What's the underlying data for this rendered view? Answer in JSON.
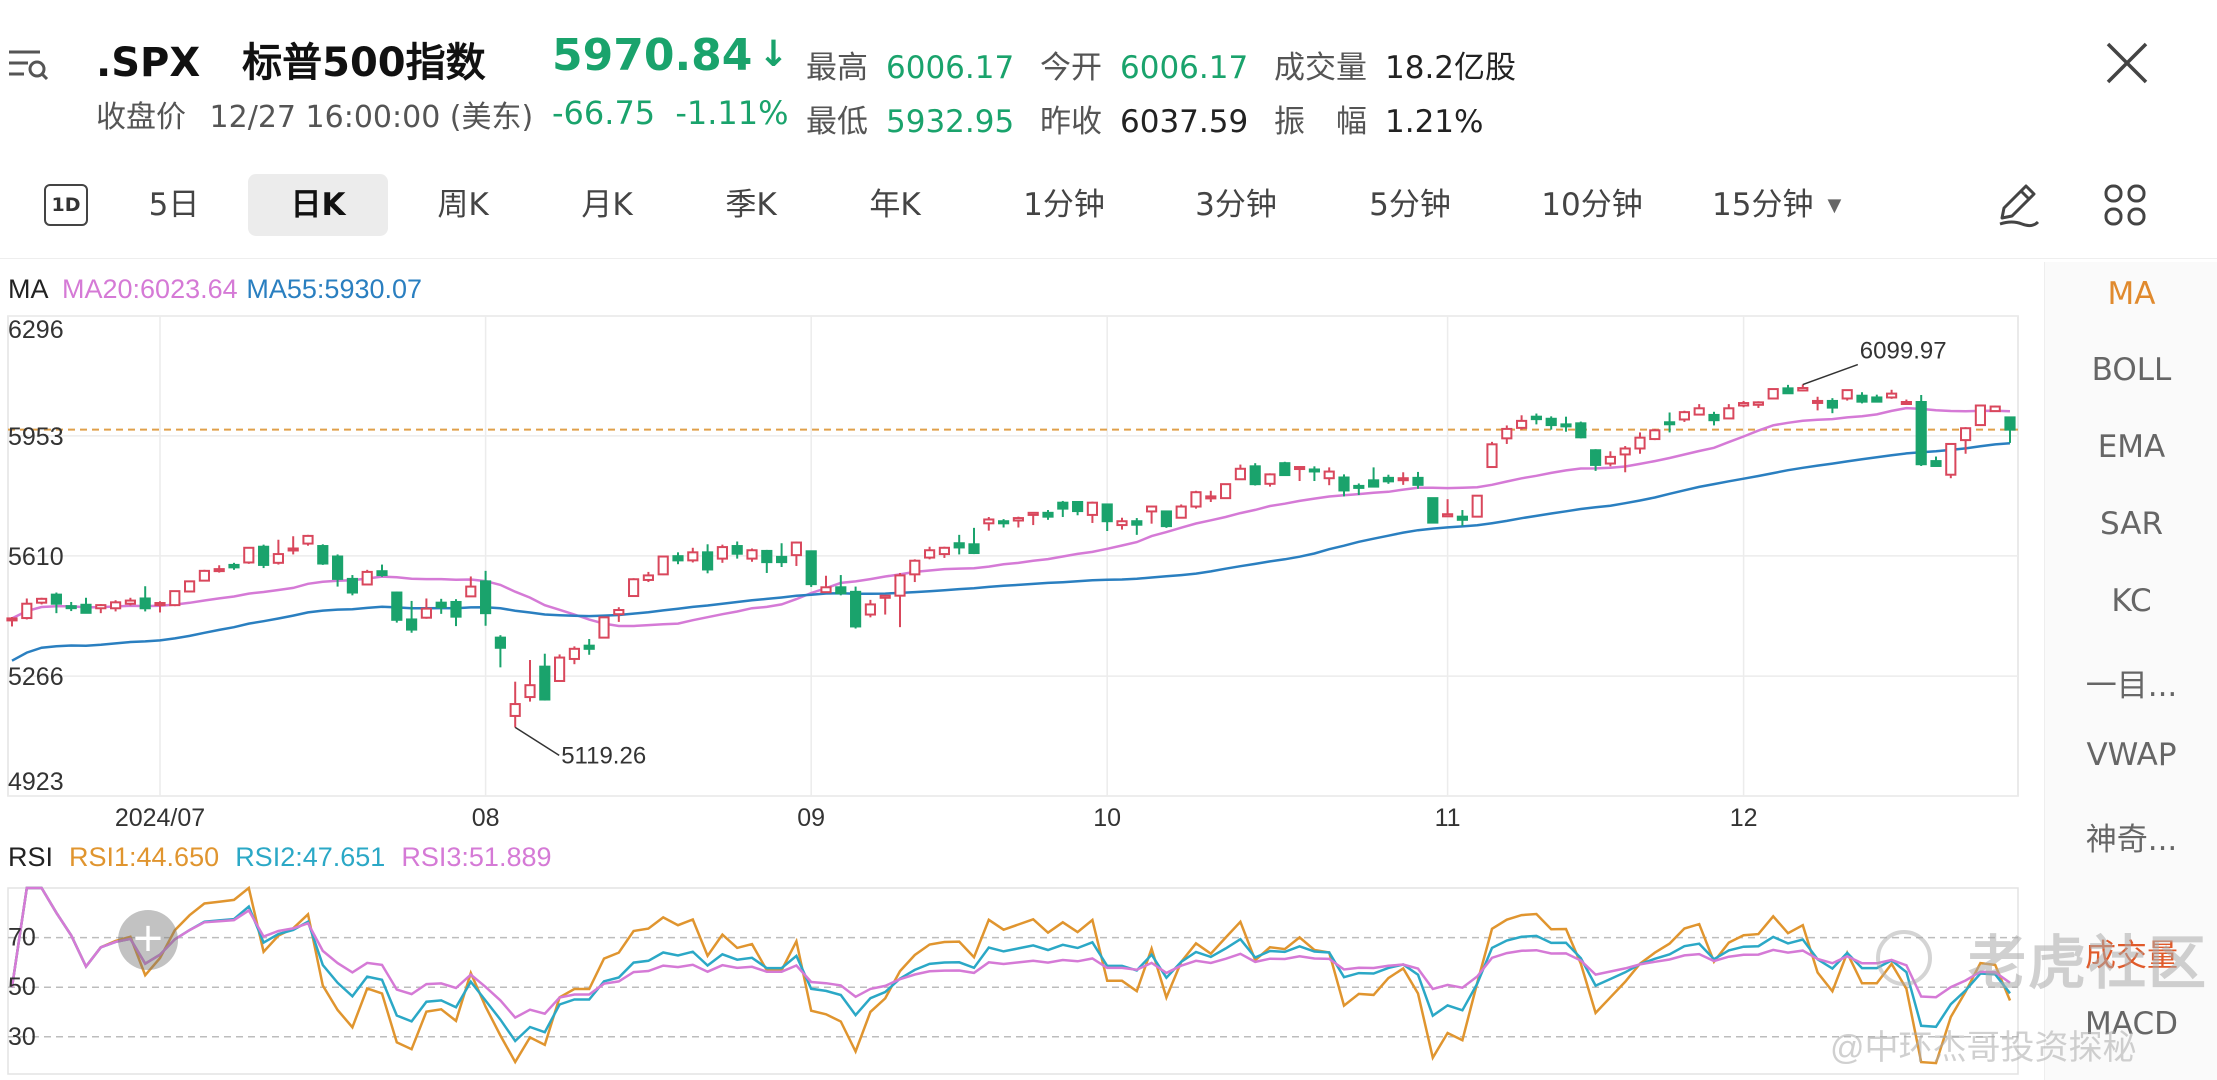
{
  "header": {
    "symbol": ".SPX",
    "name": "标普500指数",
    "close_label": "收盘价",
    "close_time": "12/27 16:00:00 (美东)",
    "price": "5970.84",
    "change": "-66.75",
    "change_pct": "-1.11%",
    "high_label": "最高",
    "high": "6006.17",
    "low_label": "最低",
    "low": "5932.95",
    "open_label": "今开",
    "open": "6006.17",
    "prev_close_label": "昨收",
    "prev_close": "6037.59",
    "volume_label": "成交量",
    "volume": "18.2亿股",
    "amplitude_label": "振　幅",
    "amplitude": "1.21%",
    "colors": {
      "down": "#1aa36c",
      "up": "#d9475c"
    }
  },
  "tabs": {
    "items": [
      "5日",
      "日K",
      "周K",
      "月K",
      "季K",
      "年K",
      "1分钟",
      "3分钟",
      "5分钟",
      "10分钟",
      "15分钟"
    ],
    "active": "日K",
    "badge": "1D"
  },
  "indicators": {
    "items": [
      "MA",
      "BOLL",
      "EMA",
      "SAR",
      "KC",
      "一目...",
      "VWAP",
      "神奇...",
      "成交量",
      "MACD"
    ],
    "active": "MA"
  },
  "watermark": {
    "logo": "老虎社区",
    "author": "@中环杰哥投资探秘"
  },
  "chart_data": [
    {
      "type": "candlestick",
      "title": "",
      "legend": [
        {
          "name": "MA",
          "value": "",
          "color": "#222222"
        },
        {
          "name": "MA20",
          "value": "6023.64",
          "color": "#d57ad6"
        },
        {
          "name": "MA55",
          "value": "5930.07",
          "color": "#2a7fc0"
        }
      ],
      "y_ticks": [
        6296,
        5953,
        5610,
        5266,
        4923
      ],
      "ylim": [
        4923,
        6296
      ],
      "x_labels": [
        {
          "label": "2024/07",
          "date": "2024-07-01"
        },
        {
          "label": "08",
          "date": "2024-08-01"
        },
        {
          "label": "09",
          "date": "2024-09-03"
        },
        {
          "label": "10",
          "date": "2024-10-01"
        },
        {
          "label": "11",
          "date": "2024-11-01"
        },
        {
          "label": "12",
          "date": "2024-12-02"
        }
      ],
      "annotations": [
        {
          "text": "6099.97",
          "date": "2024-12-06",
          "value": 6099.97
        },
        {
          "text": "5119.26",
          "date": "2024-08-05",
          "value": 5119.26
        }
      ],
      "reference_line": {
        "value": 5970.84
      },
      "dates": [
        "2024-06-14",
        "2024-06-17",
        "2024-06-18",
        "2024-06-20",
        "2024-06-21",
        "2024-06-24",
        "2024-06-25",
        "2024-06-26",
        "2024-06-27",
        "2024-06-28",
        "2024-07-01",
        "2024-07-02",
        "2024-07-03",
        "2024-07-05",
        "2024-07-08",
        "2024-07-09",
        "2024-07-10",
        "2024-07-11",
        "2024-07-12",
        "2024-07-15",
        "2024-07-16",
        "2024-07-17",
        "2024-07-18",
        "2024-07-19",
        "2024-07-22",
        "2024-07-23",
        "2024-07-24",
        "2024-07-25",
        "2024-07-26",
        "2024-07-29",
        "2024-07-30",
        "2024-07-31",
        "2024-08-01",
        "2024-08-02",
        "2024-08-05",
        "2024-08-06",
        "2024-08-07",
        "2024-08-08",
        "2024-08-09",
        "2024-08-12",
        "2024-08-13",
        "2024-08-14",
        "2024-08-15",
        "2024-08-16",
        "2024-08-19",
        "2024-08-20",
        "2024-08-21",
        "2024-08-22",
        "2024-08-23",
        "2024-08-26",
        "2024-08-27",
        "2024-08-28",
        "2024-08-29",
        "2024-08-30",
        "2024-09-03",
        "2024-09-04",
        "2024-09-05",
        "2024-09-06",
        "2024-09-09",
        "2024-09-10",
        "2024-09-11",
        "2024-09-12",
        "2024-09-13",
        "2024-09-16",
        "2024-09-17",
        "2024-09-18",
        "2024-09-19",
        "2024-09-20",
        "2024-09-23",
        "2024-09-24",
        "2024-09-25",
        "2024-09-26",
        "2024-09-27",
        "2024-09-30",
        "2024-10-01",
        "2024-10-02",
        "2024-10-03",
        "2024-10-04",
        "2024-10-07",
        "2024-10-08",
        "2024-10-09",
        "2024-10-10",
        "2024-10-11",
        "2024-10-14",
        "2024-10-15",
        "2024-10-16",
        "2024-10-17",
        "2024-10-18",
        "2024-10-21",
        "2024-10-22",
        "2024-10-23",
        "2024-10-24",
        "2024-10-25",
        "2024-10-28",
        "2024-10-29",
        "2024-10-30",
        "2024-10-31",
        "2024-11-01",
        "2024-11-04",
        "2024-11-05",
        "2024-11-06",
        "2024-11-07",
        "2024-11-08",
        "2024-11-11",
        "2024-11-12",
        "2024-11-13",
        "2024-11-14",
        "2024-11-15",
        "2024-11-18",
        "2024-11-19",
        "2024-11-20",
        "2024-11-21",
        "2024-11-22",
        "2024-11-25",
        "2024-11-26",
        "2024-11-27",
        "2024-11-29",
        "2024-12-02",
        "2024-12-03",
        "2024-12-04",
        "2024-12-05",
        "2024-12-06",
        "2024-12-09",
        "2024-12-10",
        "2024-12-11",
        "2024-12-12",
        "2024-12-13",
        "2024-12-16",
        "2024-12-17",
        "2024-12-18",
        "2024-12-19",
        "2024-12-20",
        "2024-12-23",
        "2024-12-24",
        "2024-12-26",
        "2024-12-27"
      ],
      "ohlc": [
        [
          5429,
          5435,
          5408,
          5431
        ],
        [
          5432,
          5488,
          5428,
          5473
        ],
        [
          5476,
          5490,
          5471,
          5487
        ],
        [
          5499,
          5505,
          5446,
          5473
        ],
        [
          5466,
          5478,
          5452,
          5464
        ],
        [
          5470,
          5490,
          5447,
          5447
        ],
        [
          5460,
          5472,
          5446,
          5469
        ],
        [
          5460,
          5483,
          5451,
          5477
        ],
        [
          5473,
          5490,
          5468,
          5482
        ],
        [
          5488,
          5523,
          5451,
          5460
        ],
        [
          5472,
          5480,
          5448,
          5475
        ],
        [
          5469,
          5510,
          5466,
          5509
        ],
        [
          5508,
          5539,
          5508,
          5537
        ],
        [
          5539,
          5570,
          5537,
          5567
        ],
        [
          5572,
          5583,
          5562,
          5572
        ],
        [
          5584,
          5590,
          5570,
          5577
        ],
        [
          5591,
          5635,
          5587,
          5633
        ],
        [
          5636,
          5642,
          5575,
          5584
        ],
        [
          5590,
          5656,
          5585,
          5615
        ],
        [
          5630,
          5666,
          5614,
          5631
        ],
        [
          5645,
          5670,
          5639,
          5667
        ],
        [
          5638,
          5643,
          5584,
          5588
        ],
        [
          5608,
          5614,
          5522,
          5544
        ],
        [
          5544,
          5555,
          5497,
          5505
        ],
        [
          5528,
          5570,
          5527,
          5564
        ],
        [
          5566,
          5585,
          5550,
          5555
        ],
        [
          5505,
          5508,
          5419,
          5427
        ],
        [
          5428,
          5481,
          5390,
          5399
        ],
        [
          5433,
          5488,
          5430,
          5459
        ],
        [
          5476,
          5487,
          5444,
          5463
        ],
        [
          5478,
          5486,
          5409,
          5436
        ],
        [
          5494,
          5551,
          5494,
          5522
        ],
        [
          5537,
          5567,
          5410,
          5446
        ],
        [
          5376,
          5383,
          5291,
          5347
        ],
        [
          5152,
          5250,
          5119,
          5186
        ],
        [
          5206,
          5312,
          5193,
          5240
        ],
        [
          5293,
          5330,
          5196,
          5199
        ],
        [
          5252,
          5328,
          5250,
          5319
        ],
        [
          5315,
          5351,
          5300,
          5344
        ],
        [
          5353,
          5372,
          5327,
          5344
        ],
        [
          5376,
          5436,
          5376,
          5434
        ],
        [
          5443,
          5463,
          5421,
          5455
        ],
        [
          5495,
          5546,
          5494,
          5543
        ],
        [
          5541,
          5564,
          5535,
          5554
        ],
        [
          5557,
          5609,
          5555,
          5608
        ],
        [
          5609,
          5620,
          5586,
          5597
        ],
        [
          5597,
          5633,
          5591,
          5620
        ],
        [
          5620,
          5643,
          5560,
          5571
        ],
        [
          5602,
          5642,
          5590,
          5635
        ],
        [
          5638,
          5651,
          5602,
          5616
        ],
        [
          5602,
          5631,
          5593,
          5626
        ],
        [
          5624,
          5627,
          5561,
          5592
        ],
        [
          5607,
          5646,
          5578,
          5592
        ],
        [
          5612,
          5651,
          5581,
          5648
        ],
        [
          5623,
          5623,
          5521,
          5529
        ],
        [
          5506,
          5553,
          5505,
          5520
        ],
        [
          5520,
          5555,
          5497,
          5503
        ],
        [
          5507,
          5522,
          5402,
          5408
        ],
        [
          5442,
          5484,
          5434,
          5471
        ],
        [
          5490,
          5497,
          5442,
          5496
        ],
        [
          5496,
          5561,
          5406,
          5554
        ],
        [
          5557,
          5600,
          5535,
          5596
        ],
        [
          5605,
          5636,
          5600,
          5626
        ],
        [
          5615,
          5636,
          5604,
          5633
        ],
        [
          5646,
          5670,
          5614,
          5634
        ],
        [
          5643,
          5690,
          5615,
          5618
        ],
        [
          5703,
          5721,
          5682,
          5714
        ],
        [
          5709,
          5715,
          5691,
          5703
        ],
        [
          5711,
          5722,
          5691,
          5718
        ],
        [
          5727,
          5735,
          5698,
          5733
        ],
        [
          5733,
          5741,
          5713,
          5722
        ],
        [
          5762,
          5767,
          5721,
          5745
        ],
        [
          5764,
          5765,
          5726,
          5738
        ],
        [
          5727,
          5765,
          5704,
          5762
        ],
        [
          5757,
          5757,
          5681,
          5709
        ],
        [
          5698,
          5719,
          5685,
          5709
        ],
        [
          5709,
          5718,
          5670,
          5699
        ],
        [
          5737,
          5753,
          5702,
          5751
        ],
        [
          5737,
          5739,
          5690,
          5695
        ],
        [
          5719,
          5757,
          5719,
          5751
        ],
        [
          5751,
          5796,
          5745,
          5792
        ],
        [
          5778,
          5796,
          5764,
          5780
        ],
        [
          5775,
          5815,
          5774,
          5815
        ],
        [
          5829,
          5871,
          5829,
          5859
        ],
        [
          5866,
          5875,
          5811,
          5815
        ],
        [
          5816,
          5846,
          5808,
          5843
        ],
        [
          5875,
          5879,
          5840,
          5841
        ],
        [
          5859,
          5865,
          5824,
          5864
        ],
        [
          5857,
          5866,
          5824,
          5853
        ],
        [
          5832,
          5863,
          5812,
          5851
        ],
        [
          5834,
          5843,
          5780,
          5797
        ],
        [
          5810,
          5817,
          5784,
          5809
        ],
        [
          5826,
          5863,
          5808,
          5808
        ],
        [
          5833,
          5842,
          5816,
          5823
        ],
        [
          5832,
          5849,
          5813,
          5832
        ],
        [
          5833,
          5850,
          5802,
          5813
        ],
        [
          5775,
          5775,
          5703,
          5705
        ],
        [
          5723,
          5772,
          5723,
          5729
        ],
        [
          5722,
          5741,
          5696,
          5713
        ],
        [
          5722,
          5783,
          5722,
          5782
        ],
        [
          5864,
          5936,
          5864,
          5929
        ],
        [
          5946,
          5983,
          5930,
          5973
        ],
        [
          5976,
          6012,
          5971,
          5996
        ],
        [
          6008,
          6017,
          5986,
          6001
        ],
        [
          6002,
          6009,
          5971,
          5984
        ],
        [
          5986,
          6008,
          5965,
          5985
        ],
        [
          5989,
          5994,
          5946,
          5949
        ],
        [
          5912,
          5915,
          5853,
          5870
        ],
        [
          5874,
          5909,
          5866,
          5893
        ],
        [
          5900,
          5924,
          5849,
          5917
        ],
        [
          5917,
          5963,
          5902,
          5948
        ],
        [
          5944,
          5973,
          5941,
          5969
        ],
        [
          5992,
          6020,
          5963,
          5987
        ],
        [
          6000,
          6025,
          5993,
          6021
        ],
        [
          6014,
          6044,
          6014,
          6032
        ],
        [
          6013,
          6022,
          5983,
          5998
        ],
        [
          6003,
          6044,
          6003,
          6032
        ],
        [
          6040,
          6053,
          6035,
          6047
        ],
        [
          6042,
          6052,
          6033,
          6049
        ],
        [
          6060,
          6087,
          6060,
          6087
        ],
        [
          6089,
          6099,
          6075,
          6075
        ],
        [
          6083,
          6100,
          6081,
          6090
        ],
        [
          6053,
          6065,
          6026,
          6053
        ],
        [
          6053,
          6061,
          6018,
          6034
        ],
        [
          6060,
          6084,
          6054,
          6084
        ],
        [
          6068,
          6078,
          6046,
          6051
        ],
        [
          6063,
          6071,
          6050,
          6051
        ],
        [
          6063,
          6085,
          6059,
          6074
        ],
        [
          6047,
          6057,
          6045,
          6050
        ],
        [
          6050,
          6070,
          5867,
          5872
        ],
        [
          5881,
          5894,
          5866,
          5867
        ],
        [
          5842,
          5930,
          5832,
          5930
        ],
        [
          5941,
          5978,
          5902,
          5975
        ],
        [
          5984,
          6041,
          5983,
          6040
        ],
        [
          6024,
          6040,
          6024,
          6037
        ],
        [
          6006,
          6006,
          5933,
          5971
        ]
      ],
      "series": [
        {
          "name": "MA20",
          "color": "#d57ad6"
        },
        {
          "name": "MA55",
          "color": "#2a7fc0"
        }
      ]
    },
    {
      "type": "line",
      "title": "",
      "legend": [
        {
          "name": "RSI",
          "value": "",
          "color": "#222222"
        },
        {
          "name": "RSI1",
          "value": "44.650",
          "color": "#e0952f"
        },
        {
          "name": "RSI2",
          "value": "47.651",
          "color": "#2ba8c6"
        },
        {
          "name": "RSI3",
          "value": "51.889",
          "color": "#d57ad6"
        }
      ],
      "y_ticks": [
        70,
        50,
        30
      ],
      "ylim": [
        15,
        90
      ],
      "series": [
        {
          "name": "RSI1",
          "color": "#e0952f"
        },
        {
          "name": "RSI2",
          "color": "#2ba8c6"
        },
        {
          "name": "RSI3",
          "color": "#d57ad6"
        }
      ]
    }
  ]
}
